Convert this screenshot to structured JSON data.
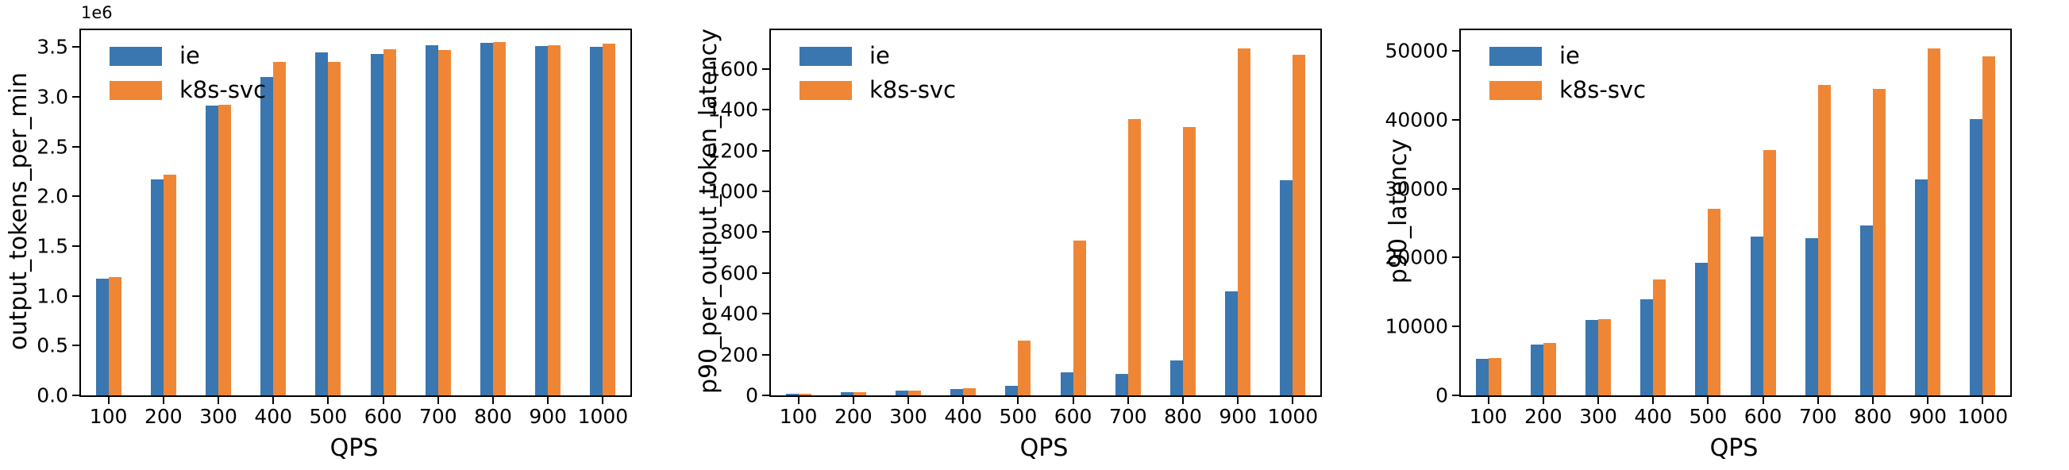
{
  "figure": {
    "xlabel": "QPS",
    "legend_labels": [
      "ie",
      "k8s-svc"
    ],
    "series_colors": {
      "ie": "#3A76AF",
      "k8s-svc": "#EF8636"
    },
    "axis_color": "#000000",
    "background_color": "#ffffff"
  },
  "chart_data": [
    {
      "type": "bar",
      "title": "",
      "ylabel": "output_tokens_per_min",
      "xlabel": "QPS",
      "offset_text": "1e6",
      "grid": false,
      "legend_position": "upper left",
      "categories": [
        "100",
        "200",
        "300",
        "400",
        "500",
        "600",
        "700",
        "800",
        "900",
        "1000"
      ],
      "ylim": [
        0,
        3670000
      ],
      "yticks": [
        {
          "value": 0,
          "label": "0.0"
        },
        {
          "value": 500000,
          "label": "0.5"
        },
        {
          "value": 1000000,
          "label": "1.0"
        },
        {
          "value": 1500000,
          "label": "1.5"
        },
        {
          "value": 2000000,
          "label": "2.0"
        },
        {
          "value": 2500000,
          "label": "2.5"
        },
        {
          "value": 3000000,
          "label": "3.0"
        },
        {
          "value": 3500000,
          "label": "3.5"
        }
      ],
      "series": [
        {
          "name": "ie",
          "color": "#3A76AF",
          "values": [
            1170000,
            2170000,
            2910000,
            3200000,
            3450000,
            3430000,
            3520000,
            3545000,
            3510000,
            3505000
          ]
        },
        {
          "name": "k8s-svc",
          "color": "#EF8636",
          "values": [
            1190000,
            2220000,
            2920000,
            3350000,
            3350000,
            3480000,
            3470000,
            3550000,
            3520000,
            3535000
          ]
        }
      ]
    },
    {
      "type": "bar",
      "title": "",
      "ylabel": "p90_per_output_token_latency",
      "xlabel": "QPS",
      "grid": false,
      "legend_position": "upper left",
      "categories": [
        "100",
        "200",
        "300",
        "400",
        "500",
        "600",
        "700",
        "800",
        "900",
        "1000"
      ],
      "ylim": [
        0,
        1790
      ],
      "yticks": [
        {
          "value": 0,
          "label": "0"
        },
        {
          "value": 200,
          "label": "200"
        },
        {
          "value": 400,
          "label": "400"
        },
        {
          "value": 600,
          "label": "600"
        },
        {
          "value": 800,
          "label": "800"
        },
        {
          "value": 1000,
          "label": "1000"
        },
        {
          "value": 1200,
          "label": "1200"
        },
        {
          "value": 1400,
          "label": "1400"
        },
        {
          "value": 1600,
          "label": "1600"
        }
      ],
      "series": [
        {
          "name": "ie",
          "color": "#3A76AF",
          "values": [
            8,
            15,
            22,
            30,
            46,
            112,
            104,
            173,
            510,
            1055
          ]
        },
        {
          "name": "k8s-svc",
          "color": "#EF8636",
          "values": [
            8,
            16,
            22,
            35,
            268,
            760,
            1355,
            1315,
            1700,
            1670
          ]
        }
      ]
    },
    {
      "type": "bar",
      "title": "",
      "ylabel": "p90_latency",
      "xlabel": "QPS",
      "grid": false,
      "legend_position": "upper left",
      "categories": [
        "100",
        "200",
        "300",
        "400",
        "500",
        "600",
        "700",
        "800",
        "900",
        "1000"
      ],
      "ylim": [
        0,
        53000
      ],
      "yticks": [
        {
          "value": 0,
          "label": "0"
        },
        {
          "value": 10000,
          "label": "10000"
        },
        {
          "value": 20000,
          "label": "20000"
        },
        {
          "value": 30000,
          "label": "30000"
        },
        {
          "value": 40000,
          "label": "40000"
        },
        {
          "value": 50000,
          "label": "50000"
        }
      ],
      "series": [
        {
          "name": "ie",
          "color": "#3A76AF",
          "values": [
            5300,
            7400,
            10900,
            13900,
            19200,
            23000,
            22800,
            24700,
            31300,
            40100
          ]
        },
        {
          "name": "k8s-svc",
          "color": "#EF8636",
          "values": [
            5400,
            7600,
            11100,
            16800,
            27100,
            35600,
            45000,
            44500,
            50400,
            49200
          ]
        }
      ]
    }
  ]
}
